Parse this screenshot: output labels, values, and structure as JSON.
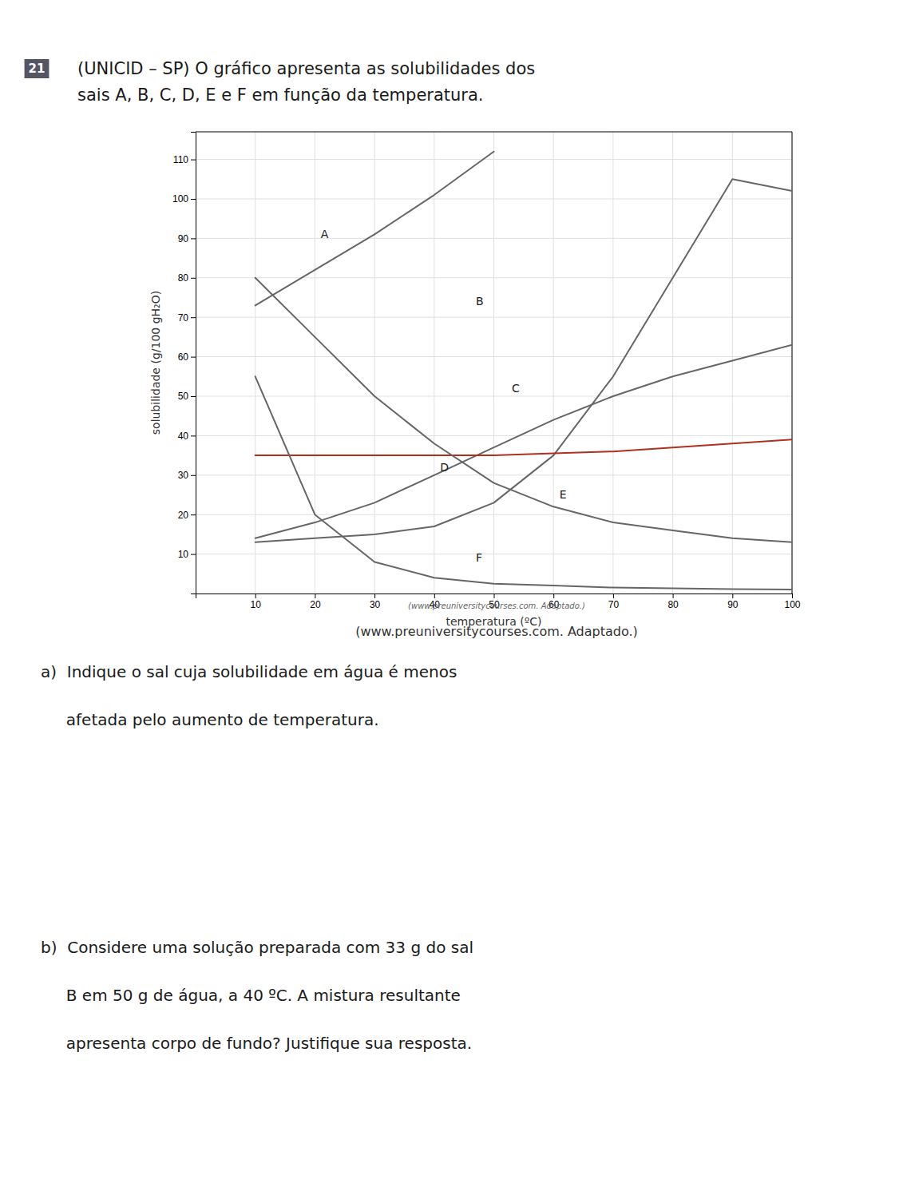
{
  "chart_data": {
    "type": "line",
    "number_label": "21",
    "title": [
      "(UNICID – SP) O gráfico apresenta as solubilidades dos",
      "sais A, B, C, D, E e F em função da temperatura."
    ],
    "x_label": "temperatura (ºC)",
    "y_label": "solubilidade (g/100 gH₂O)",
    "source": [
      "(www.preuniversitycourses.com. Adaptado.)",
      "(www.preuniversitycourses.com. Adaptado.)"
    ],
    "notes": [
      "a)  Indique o sal cuja solubilidade em água é menos",
      "     afetada pelo aumento de temperatura.",
      "b)  Considere uma solução preparada com 33 g do sal",
      "     B em 50 g de água, a 40 ºC. A mistura resultante",
      "     apresenta corpo de fundo? Justifique sua resposta."
    ],
    "xlim": [
      0,
      100
    ],
    "ylim": [
      0,
      117
    ],
    "xticks": [
      10,
      20,
      30,
      40,
      50,
      60,
      70,
      80,
      90,
      100
    ],
    "yticks": [
      10,
      20,
      30,
      40,
      50,
      60,
      70,
      80,
      90,
      100,
      110
    ],
    "grid": true,
    "series": [
      {
        "name": "A",
        "color": "#666666",
        "label_x": 21,
        "label_y": 90,
        "x": [
          10,
          20,
          30,
          40,
          50
        ],
        "values": [
          73,
          82,
          91,
          101,
          112
        ]
      },
      {
        "name": "B",
        "color": "#666666",
        "label_x": 47,
        "label_y": 73,
        "x": [
          10,
          20,
          30,
          40,
          50,
          60,
          70,
          80,
          90,
          100
        ],
        "values": [
          13,
          14,
          15,
          17,
          23,
          35,
          55,
          80,
          105,
          102
        ]
      },
      {
        "name": "C",
        "color": "#666666",
        "label_x": 53,
        "label_y": 51,
        "x": [
          10,
          20,
          30,
          40,
          50,
          60,
          70,
          80,
          90,
          100
        ],
        "values": [
          14,
          18,
          23,
          30,
          37,
          44,
          50,
          55,
          59,
          63
        ]
      },
      {
        "name": "D",
        "color": "#b03020",
        "label_x": 41,
        "label_y": 31,
        "x": [
          10,
          20,
          30,
          40,
          50,
          60,
          70,
          80,
          90,
          100
        ],
        "values": [
          35,
          35,
          35,
          35,
          35,
          35.5,
          36,
          37,
          38,
          39
        ]
      },
      {
        "name": "E",
        "color": "#666666",
        "label_x": 61,
        "label_y": 24,
        "x": [
          10,
          20,
          30,
          40,
          50,
          60,
          70,
          80,
          90,
          100
        ],
        "values": [
          80,
          65,
          50,
          38,
          28,
          22,
          18,
          16,
          14,
          13
        ]
      },
      {
        "name": "F",
        "color": "#666666",
        "label_x": 47,
        "label_y": 8,
        "x": [
          10,
          20,
          30,
          40,
          50,
          60,
          70,
          80,
          90,
          100
        ],
        "values": [
          55,
          20,
          8,
          4,
          2.5,
          2,
          1.5,
          1.3,
          1.1,
          1.0
        ]
      }
    ]
  }
}
